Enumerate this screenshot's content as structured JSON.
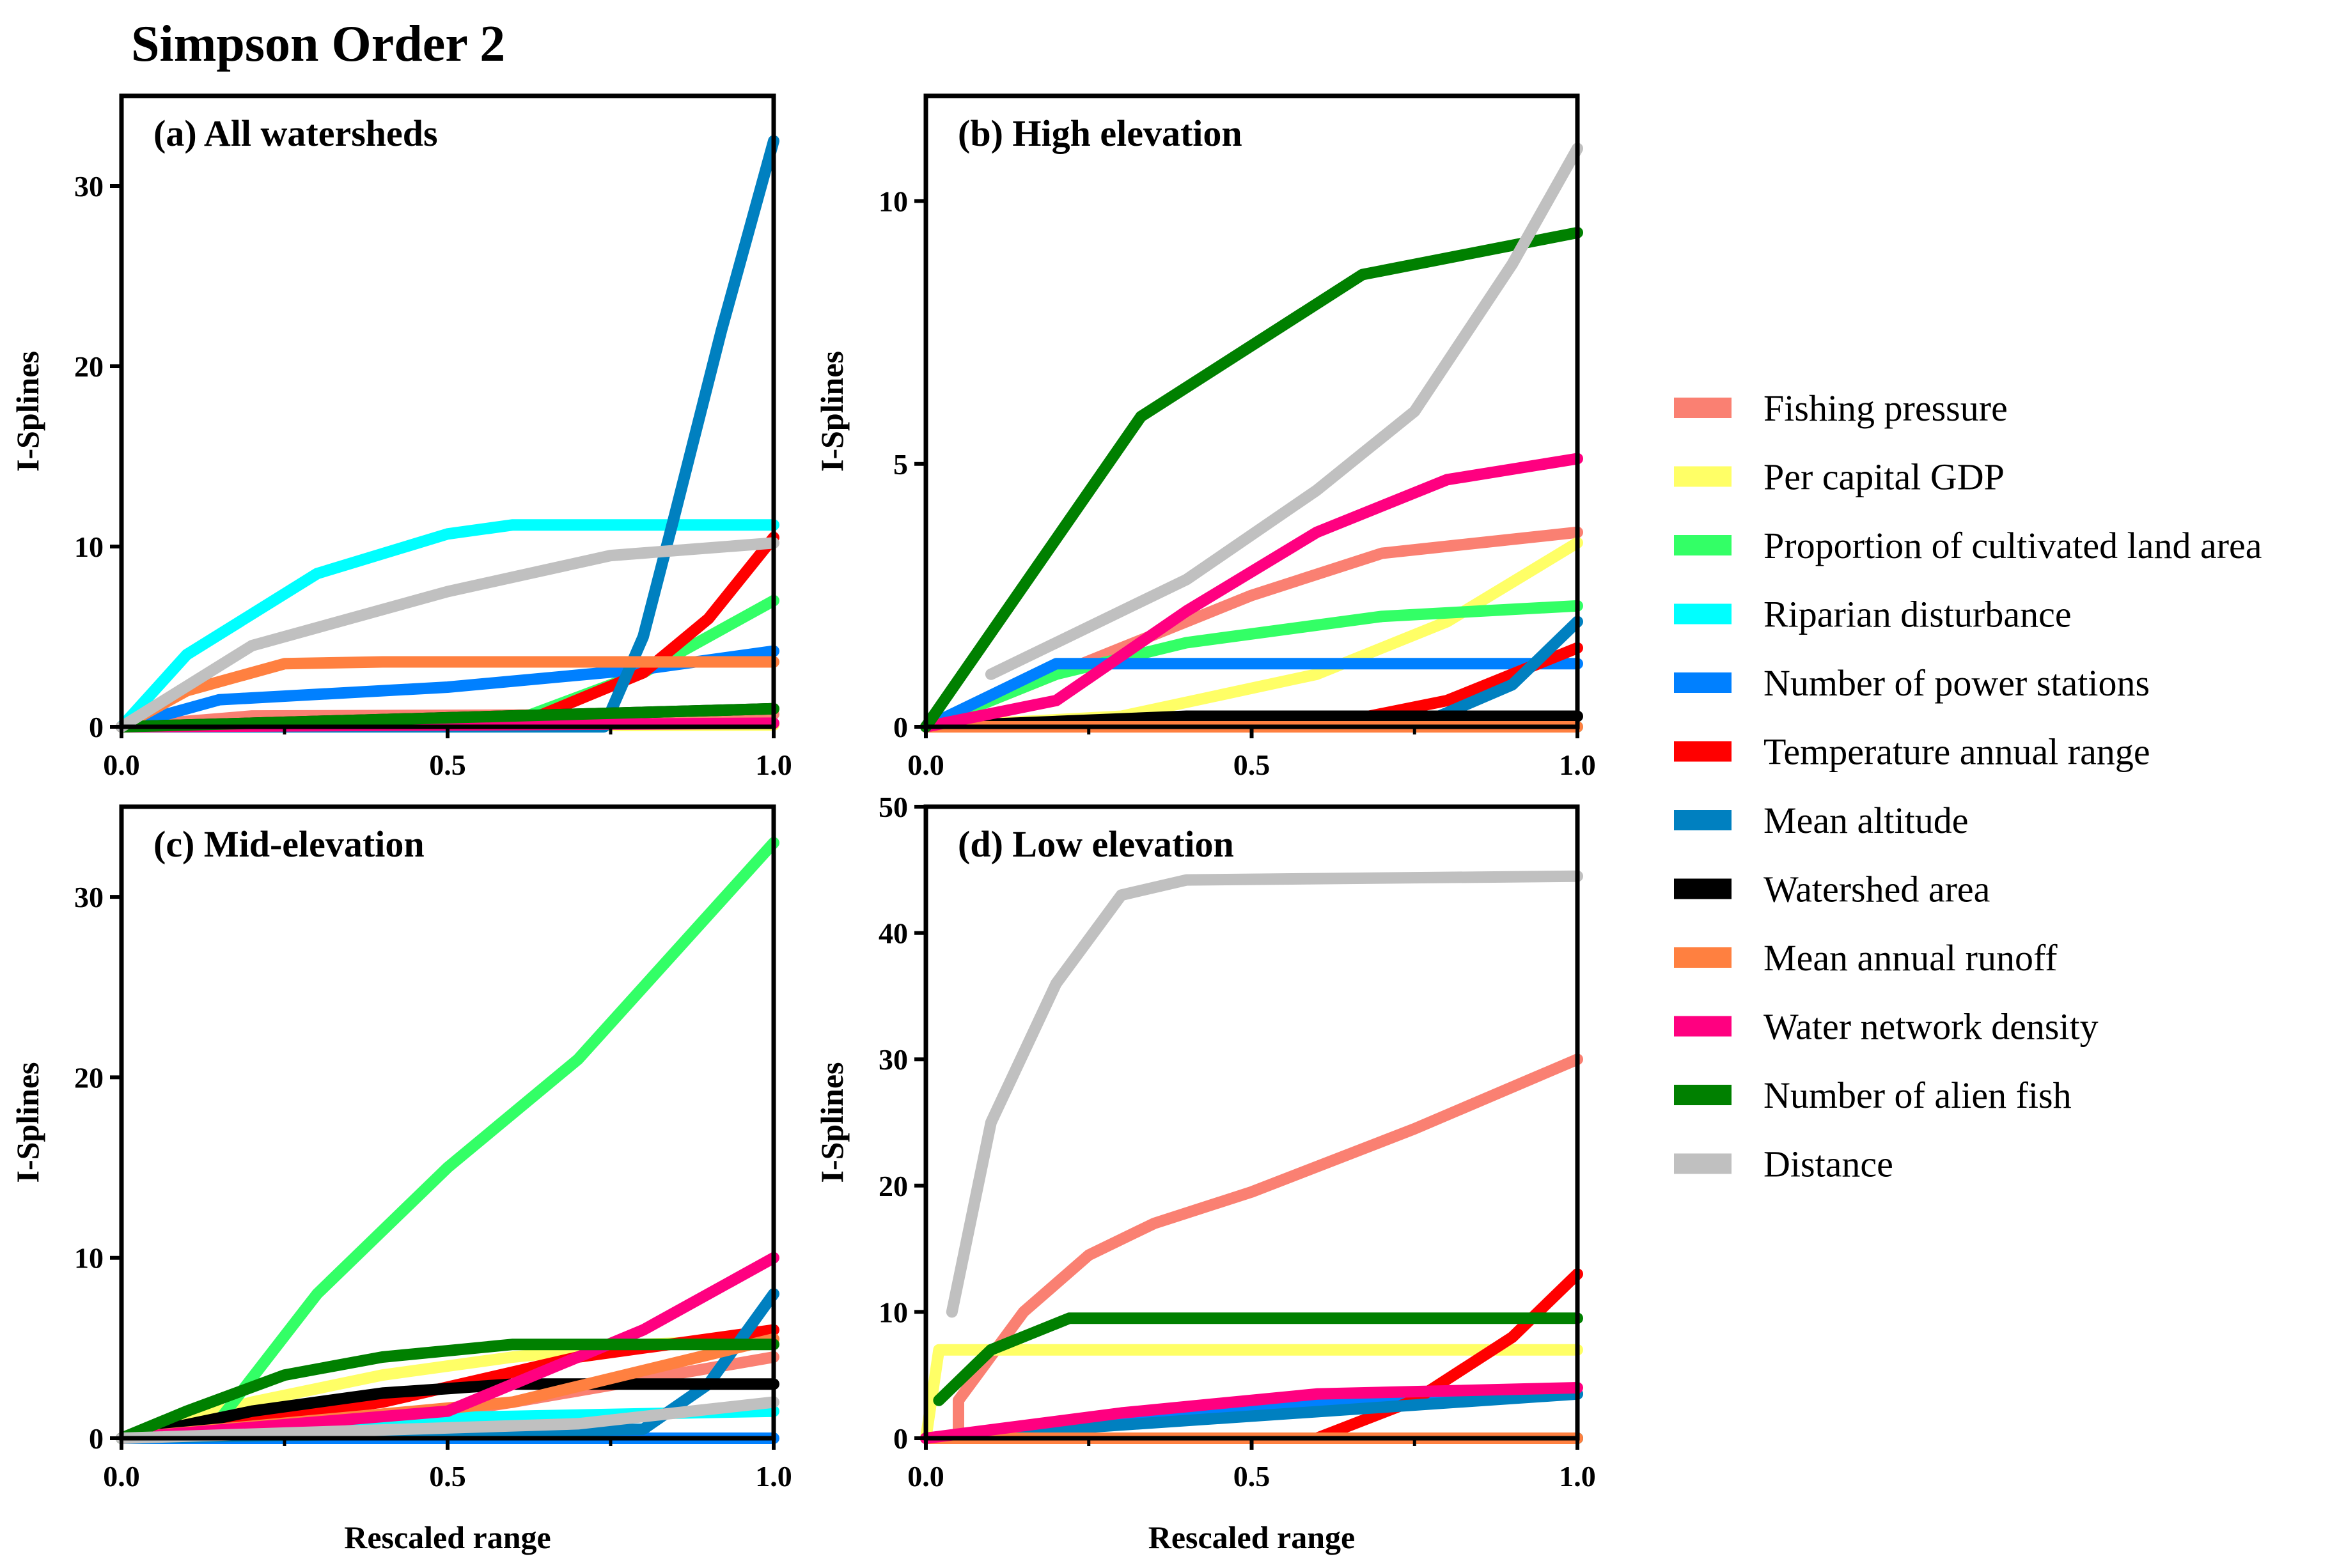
{
  "figure_title": "Simpson Order 2",
  "legend": [
    {
      "label": "Fishing pressure",
      "color": "#fa8072"
    },
    {
      "label": "Per capital GDP",
      "color": "#ffff66"
    },
    {
      "label": "Proportion of cultivated land area",
      "color": "#33ff66"
    },
    {
      "label": "Riparian disturbance",
      "color": "#00ffff"
    },
    {
      "label": "Number of power stations",
      "color": "#0080ff"
    },
    {
      "label": "Temperature annual range",
      "color": "#ff0000"
    },
    {
      "label": "Mean altitude",
      "color": "#0080c0"
    },
    {
      "label": "Watershed area",
      "color": "#000000"
    },
    {
      "label": "Mean annual runoff",
      "color": "#ff8040"
    },
    {
      "label": "Water network density",
      "color": "#ff0080"
    },
    {
      "label": "Number of alien fish",
      "color": "#008000"
    },
    {
      "label": "Distance",
      "color": "#c0c0c0"
    }
  ],
  "chart_data": [
    {
      "type": "line",
      "title": "(a) All watersheds",
      "xlabel": "",
      "ylabel": "I-Splines",
      "xlim": [
        0,
        1
      ],
      "ylim": [
        0,
        35
      ],
      "xticks": [
        "0.0",
        "0.5",
        "1.0"
      ],
      "yticks": [
        "0",
        "10",
        "20",
        "30"
      ],
      "series": [
        {
          "name": "Fishing pressure",
          "points": [
            [
              0,
              0
            ],
            [
              0.2,
              0.6
            ],
            [
              1,
              0.7
            ]
          ]
        },
        {
          "name": "Per capital GDP",
          "points": [
            [
              0,
              0
            ],
            [
              1,
              0.1
            ]
          ]
        },
        {
          "name": "Proportion of cultivated land area",
          "points": [
            [
              0,
              0
            ],
            [
              0.6,
              0.3
            ],
            [
              0.8,
              3
            ],
            [
              1,
              7
            ]
          ]
        },
        {
          "name": "Riparian disturbance",
          "points": [
            [
              0,
              0
            ],
            [
              0.1,
              4
            ],
            [
              0.3,
              8.5
            ],
            [
              0.5,
              10.7
            ],
            [
              0.6,
              11.2
            ],
            [
              1,
              11.2
            ]
          ]
        },
        {
          "name": "Number of power stations",
          "points": [
            [
              0,
              0
            ],
            [
              0.15,
              1.5
            ],
            [
              0.5,
              2.2
            ],
            [
              0.8,
              3.2
            ],
            [
              1,
              4.2
            ]
          ]
        },
        {
          "name": "Temperature annual range",
          "points": [
            [
              0,
              0
            ],
            [
              0.6,
              0
            ],
            [
              0.8,
              3
            ],
            [
              0.9,
              6
            ],
            [
              1,
              10.5
            ]
          ]
        },
        {
          "name": "Mean altitude",
          "points": [
            [
              0,
              0
            ],
            [
              0.74,
              0
            ],
            [
              0.8,
              5
            ],
            [
              0.85,
              12
            ],
            [
              0.92,
              22
            ],
            [
              1,
              32.5
            ]
          ]
        },
        {
          "name": "Watershed area",
          "points": [
            [
              0,
              0
            ],
            [
              0.5,
              0.5
            ],
            [
              1,
              1
            ]
          ]
        },
        {
          "name": "Mean annual runoff",
          "points": [
            [
              0,
              0
            ],
            [
              0.1,
              2
            ],
            [
              0.25,
              3.5
            ],
            [
              0.4,
              3.6
            ],
            [
              1,
              3.6
            ]
          ]
        },
        {
          "name": "Water network density",
          "points": [
            [
              0,
              0
            ],
            [
              1,
              0.2
            ]
          ]
        },
        {
          "name": "Number of alien fish",
          "points": [
            [
              0,
              0
            ],
            [
              1,
              1
            ]
          ]
        },
        {
          "name": "Distance",
          "points": [
            [
              0,
              0
            ],
            [
              0.2,
              4.5
            ],
            [
              0.5,
              7.5
            ],
            [
              0.75,
              9.5
            ],
            [
              1,
              10.2
            ]
          ]
        }
      ]
    },
    {
      "type": "line",
      "title": "(b) High elevation",
      "xlabel": "",
      "ylabel": "I-Splines",
      "xlim": [
        0,
        1
      ],
      "ylim": [
        0,
        12
      ],
      "xticks": [
        "0.0",
        "0.5",
        "1.0"
      ],
      "yticks": [
        "0",
        "5",
        "10"
      ],
      "series": [
        {
          "name": "Fishing pressure",
          "points": [
            [
              0,
              0
            ],
            [
              0.3,
              1.5
            ],
            [
              0.5,
              2.5
            ],
            [
              0.7,
              3.3
            ],
            [
              1,
              3.7
            ]
          ]
        },
        {
          "name": "Per capital GDP",
          "points": [
            [
              0,
              0
            ],
            [
              0.3,
              0.2
            ],
            [
              0.6,
              1
            ],
            [
              0.8,
              2
            ],
            [
              1,
              3.5
            ]
          ]
        },
        {
          "name": "Proportion of cultivated land area",
          "points": [
            [
              0,
              0
            ],
            [
              0.2,
              1
            ],
            [
              0.4,
              1.6
            ],
            [
              0.7,
              2.1
            ],
            [
              1,
              2.3
            ]
          ]
        },
        {
          "name": "Riparian disturbance",
          "points": [
            [
              0,
              0
            ],
            [
              1,
              0
            ]
          ]
        },
        {
          "name": "Number of power stations",
          "points": [
            [
              0,
              0
            ],
            [
              0.2,
              1.2
            ],
            [
              1,
              1.2
            ]
          ]
        },
        {
          "name": "Temperature annual range",
          "points": [
            [
              0,
              0
            ],
            [
              0.6,
              0
            ],
            [
              0.8,
              0.5
            ],
            [
              1,
              1.5
            ]
          ]
        },
        {
          "name": "Mean altitude",
          "points": [
            [
              0,
              0
            ],
            [
              0.75,
              0
            ],
            [
              0.9,
              0.8
            ],
            [
              1,
              2
            ]
          ]
        },
        {
          "name": "Watershed area",
          "points": [
            [
              0,
              0
            ],
            [
              0.4,
              0.2
            ],
            [
              1,
              0.2
            ]
          ]
        },
        {
          "name": "Mean annual runoff",
          "points": [
            [
              0,
              0
            ],
            [
              1,
              0
            ]
          ]
        },
        {
          "name": "Water network density",
          "points": [
            [
              0,
              0
            ],
            [
              0.2,
              0.5
            ],
            [
              0.4,
              2.2
            ],
            [
              0.6,
              3.7
            ],
            [
              0.8,
              4.7
            ],
            [
              1,
              5.1
            ]
          ]
        },
        {
          "name": "Number of alien fish",
          "points": [
            [
              0,
              0
            ],
            [
              0.33,
              5.9
            ],
            [
              0.67,
              8.6
            ],
            [
              1,
              9.4
            ]
          ]
        },
        {
          "name": "Distance",
          "points": [
            [
              0.1,
              1
            ],
            [
              0.4,
              2.8
            ],
            [
              0.6,
              4.5
            ],
            [
              0.75,
              6
            ],
            [
              0.9,
              8.8
            ],
            [
              1,
              11
            ]
          ]
        }
      ]
    },
    {
      "type": "line",
      "title": "(c) Mid-elevation",
      "xlabel": "Rescaled range",
      "ylabel": "I-Splines",
      "xlim": [
        0,
        1
      ],
      "ylim": [
        0,
        35
      ],
      "xticks": [
        "0.0",
        "0.5",
        "1.0"
      ],
      "yticks": [
        "0",
        "10",
        "20",
        "30"
      ],
      "series": [
        {
          "name": "Fishing pressure",
          "points": [
            [
              0,
              0
            ],
            [
              0.3,
              0.3
            ],
            [
              0.6,
              2
            ],
            [
              1,
              4.5
            ]
          ]
        },
        {
          "name": "Per capital GDP",
          "points": [
            [
              0,
              0
            ],
            [
              0.2,
              2
            ],
            [
              0.4,
              3.5
            ],
            [
              0.6,
              4.5
            ],
            [
              0.8,
              5.2
            ],
            [
              1,
              5.5
            ]
          ]
        },
        {
          "name": "Proportion of cultivated land area",
          "points": [
            [
              0,
              0
            ],
            [
              0.15,
              1
            ],
            [
              0.3,
              8
            ],
            [
              0.5,
              15
            ],
            [
              0.7,
              21
            ],
            [
              0.85,
              27
            ],
            [
              1,
              33
            ]
          ]
        },
        {
          "name": "Riparian disturbance",
          "points": [
            [
              0,
              0
            ],
            [
              0.3,
              1
            ],
            [
              1,
              1.5
            ]
          ]
        },
        {
          "name": "Number of power stations",
          "points": [
            [
              0,
              0
            ],
            [
              1,
              0
            ]
          ]
        },
        {
          "name": "Temperature annual range",
          "points": [
            [
              0,
              0
            ],
            [
              0.4,
              2
            ],
            [
              0.7,
              4.5
            ],
            [
              1,
              6
            ]
          ]
        },
        {
          "name": "Mean altitude",
          "points": [
            [
              0,
              0
            ],
            [
              0.8,
              0.5
            ],
            [
              0.9,
              3
            ],
            [
              1,
              8
            ]
          ]
        },
        {
          "name": "Watershed area",
          "points": [
            [
              0,
              0
            ],
            [
              0.2,
              1.5
            ],
            [
              0.4,
              2.5
            ],
            [
              0.6,
              3
            ],
            [
              1,
              3
            ]
          ]
        },
        {
          "name": "Mean annual runoff",
          "points": [
            [
              0,
              0
            ],
            [
              0.6,
              2
            ],
            [
              1,
              5.5
            ]
          ]
        },
        {
          "name": "Water network density",
          "points": [
            [
              0,
              0
            ],
            [
              0.5,
              1.5
            ],
            [
              0.8,
              6
            ],
            [
              1,
              10
            ]
          ]
        },
        {
          "name": "Number of alien fish",
          "points": [
            [
              0,
              0
            ],
            [
              0.1,
              1.5
            ],
            [
              0.25,
              3.5
            ],
            [
              0.4,
              4.5
            ],
            [
              0.6,
              5.2
            ],
            [
              1,
              5.2
            ]
          ]
        },
        {
          "name": "Distance",
          "points": [
            [
              0,
              0
            ],
            [
              0.7,
              0.8
            ],
            [
              1,
              2
            ]
          ]
        }
      ]
    },
    {
      "type": "line",
      "title": "(d) Low elevation",
      "xlabel": "Rescaled range",
      "ylabel": "I-Splines",
      "xlim": [
        0,
        1
      ],
      "ylim": [
        0,
        50
      ],
      "xticks": [
        "0.0",
        "0.5",
        "1.0"
      ],
      "yticks": [
        "0",
        "10",
        "20",
        "30",
        "40",
        "50"
      ],
      "series": [
        {
          "name": "Fishing pressure",
          "points": [
            [
              0.05,
              0
            ],
            [
              0.05,
              3
            ],
            [
              0.15,
              10
            ],
            [
              0.25,
              14.5
            ],
            [
              0.35,
              17
            ],
            [
              0.5,
              19.5
            ],
            [
              0.75,
              24.5
            ],
            [
              1,
              30
            ]
          ]
        },
        {
          "name": "Per capital GDP",
          "points": [
            [
              0,
              0
            ],
            [
              0.02,
              7
            ],
            [
              1,
              7
            ]
          ]
        },
        {
          "name": "Proportion of cultivated land area",
          "points": [
            [
              0,
              0
            ],
            [
              1,
              0
            ]
          ]
        },
        {
          "name": "Riparian disturbance",
          "points": [
            [
              0,
              0
            ],
            [
              1,
              0
            ]
          ]
        },
        {
          "name": "Number of power stations",
          "points": [
            [
              0,
              0
            ],
            [
              0.2,
              1
            ],
            [
              0.5,
              2.5
            ],
            [
              1,
              3.5
            ]
          ]
        },
        {
          "name": "Temperature annual range",
          "points": [
            [
              0,
              0
            ],
            [
              0.6,
              0
            ],
            [
              0.75,
              3
            ],
            [
              0.9,
              8
            ],
            [
              1,
              13
            ]
          ]
        },
        {
          "name": "Mean altitude",
          "points": [
            [
              0,
              0
            ],
            [
              1,
              3.5
            ]
          ]
        },
        {
          "name": "Watershed area",
          "points": [
            [
              0,
              0
            ],
            [
              1,
              0
            ]
          ]
        },
        {
          "name": "Mean annual runoff",
          "points": [
            [
              0,
              0
            ],
            [
              1,
              0
            ]
          ]
        },
        {
          "name": "Water network density",
          "points": [
            [
              0,
              0
            ],
            [
              0.3,
              2
            ],
            [
              0.6,
              3.5
            ],
            [
              1,
              4
            ]
          ]
        },
        {
          "name": "Number of alien fish",
          "points": [
            [
              0.02,
              3
            ],
            [
              0.1,
              7
            ],
            [
              0.22,
              9.5
            ],
            [
              1,
              9.5
            ]
          ]
        },
        {
          "name": "Distance",
          "points": [
            [
              0.04,
              10
            ],
            [
              0.1,
              25
            ],
            [
              0.2,
              36
            ],
            [
              0.3,
              43
            ],
            [
              0.4,
              44.2
            ],
            [
              1,
              44.5
            ]
          ]
        }
      ]
    }
  ]
}
